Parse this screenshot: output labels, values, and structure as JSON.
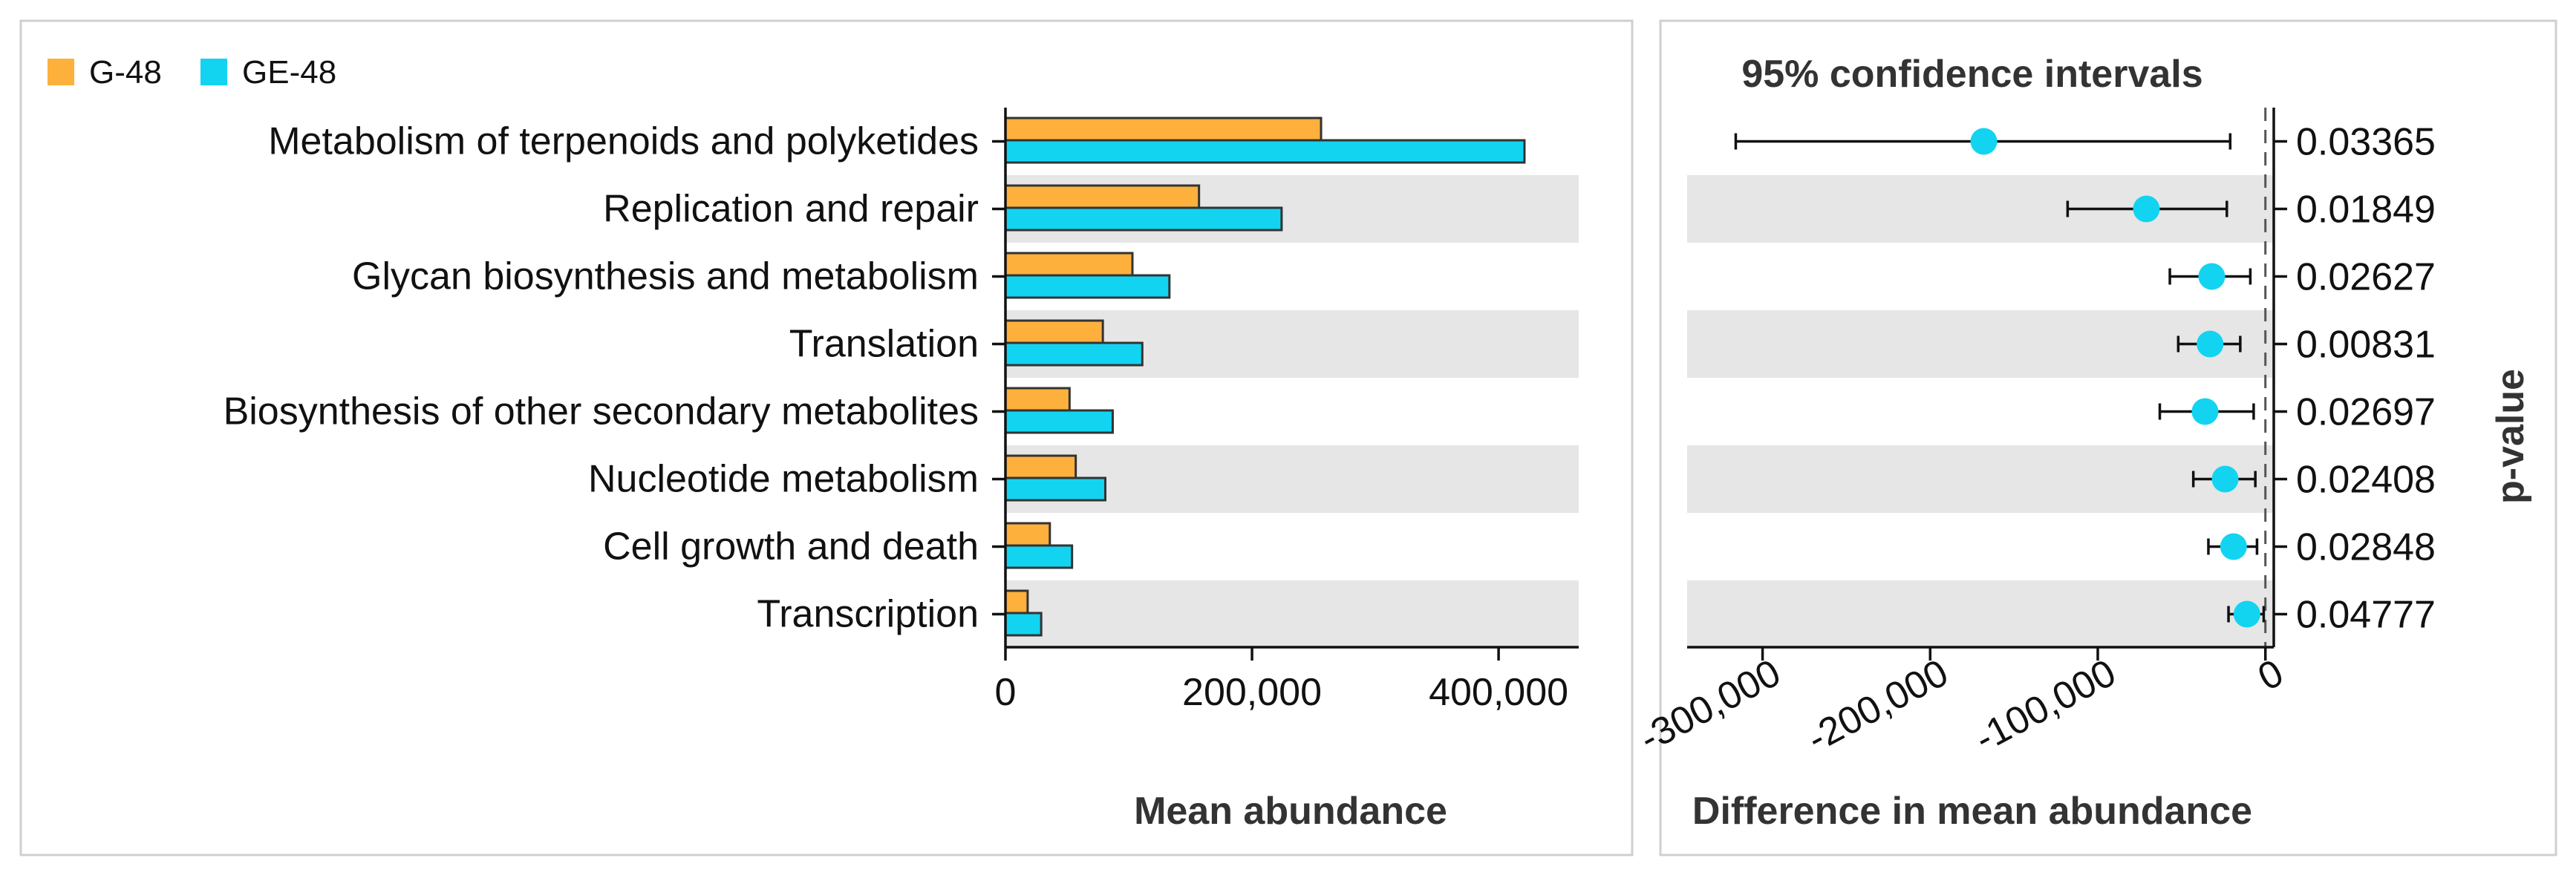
{
  "chart_data": [
    {
      "type": "bar",
      "orientation": "horizontal",
      "categories": [
        "Metabolism of terpenoids and polyketides",
        "Replication and repair",
        "Glycan biosynthesis and metabolism",
        "Translation",
        "Biosynthesis of other secondary metabolites",
        "Nucleotide metabolism",
        "Cell growth and death",
        "Transcription"
      ],
      "series": [
        {
          "name": "G-48",
          "color": "#FDB03C",
          "values": [
            256000,
            157000,
            103000,
            79000,
            52000,
            57000,
            36000,
            18000
          ]
        },
        {
          "name": "GE-48",
          "color": "#12D4F1",
          "values": [
            421000,
            224000,
            133000,
            111000,
            87000,
            81000,
            54000,
            29000
          ]
        }
      ],
      "xlabel": "Mean abundance",
      "xlim": [
        0,
        465000
      ],
      "xticks": [
        0,
        200000,
        400000
      ],
      "xtick_labels": [
        "0",
        "200,000",
        "400,000"
      ],
      "legend_position": "top-left",
      "shaded_rows": [
        1,
        3,
        5,
        7
      ]
    },
    {
      "type": "scatter",
      "subtype": "confidence-intervals",
      "title": "95% confidence intervals",
      "xlabel": "Difference in mean abundance",
      "right_axis_label": "p-value",
      "color": "#12D4F1",
      "categories": [
        "Metabolism of terpenoids and polyketides",
        "Replication and repair",
        "Glycan biosynthesis and metabolism",
        "Translation",
        "Biosynthesis of other secondary metabolites",
        "Nucleotide metabolism",
        "Cell growth and death",
        "Transcription"
      ],
      "estimate": [
        -168000,
        -71000,
        -32000,
        -33000,
        -36000,
        -24000,
        -19000,
        -11000
      ],
      "ci_low": [
        -316000,
        -118000,
        -57000,
        -52000,
        -63000,
        -43000,
        -34000,
        -22000
      ],
      "ci_high": [
        -21000,
        -23000,
        -9000,
        -15000,
        -7000,
        -6000,
        -5000,
        -1000
      ],
      "p_values": [
        "0.03365",
        "0.01849",
        "0.02627",
        "0.00831",
        "0.02697",
        "0.02408",
        "0.02848",
        "0.04777"
      ],
      "xlim": [
        -345000,
        5000
      ],
      "xticks": [
        -300000,
        -200000,
        -100000,
        0
      ],
      "xtick_labels": [
        "-300,000",
        "-200,000",
        "-100,000",
        "0"
      ],
      "shaded_rows": [
        1,
        3,
        5,
        7
      ]
    }
  ]
}
